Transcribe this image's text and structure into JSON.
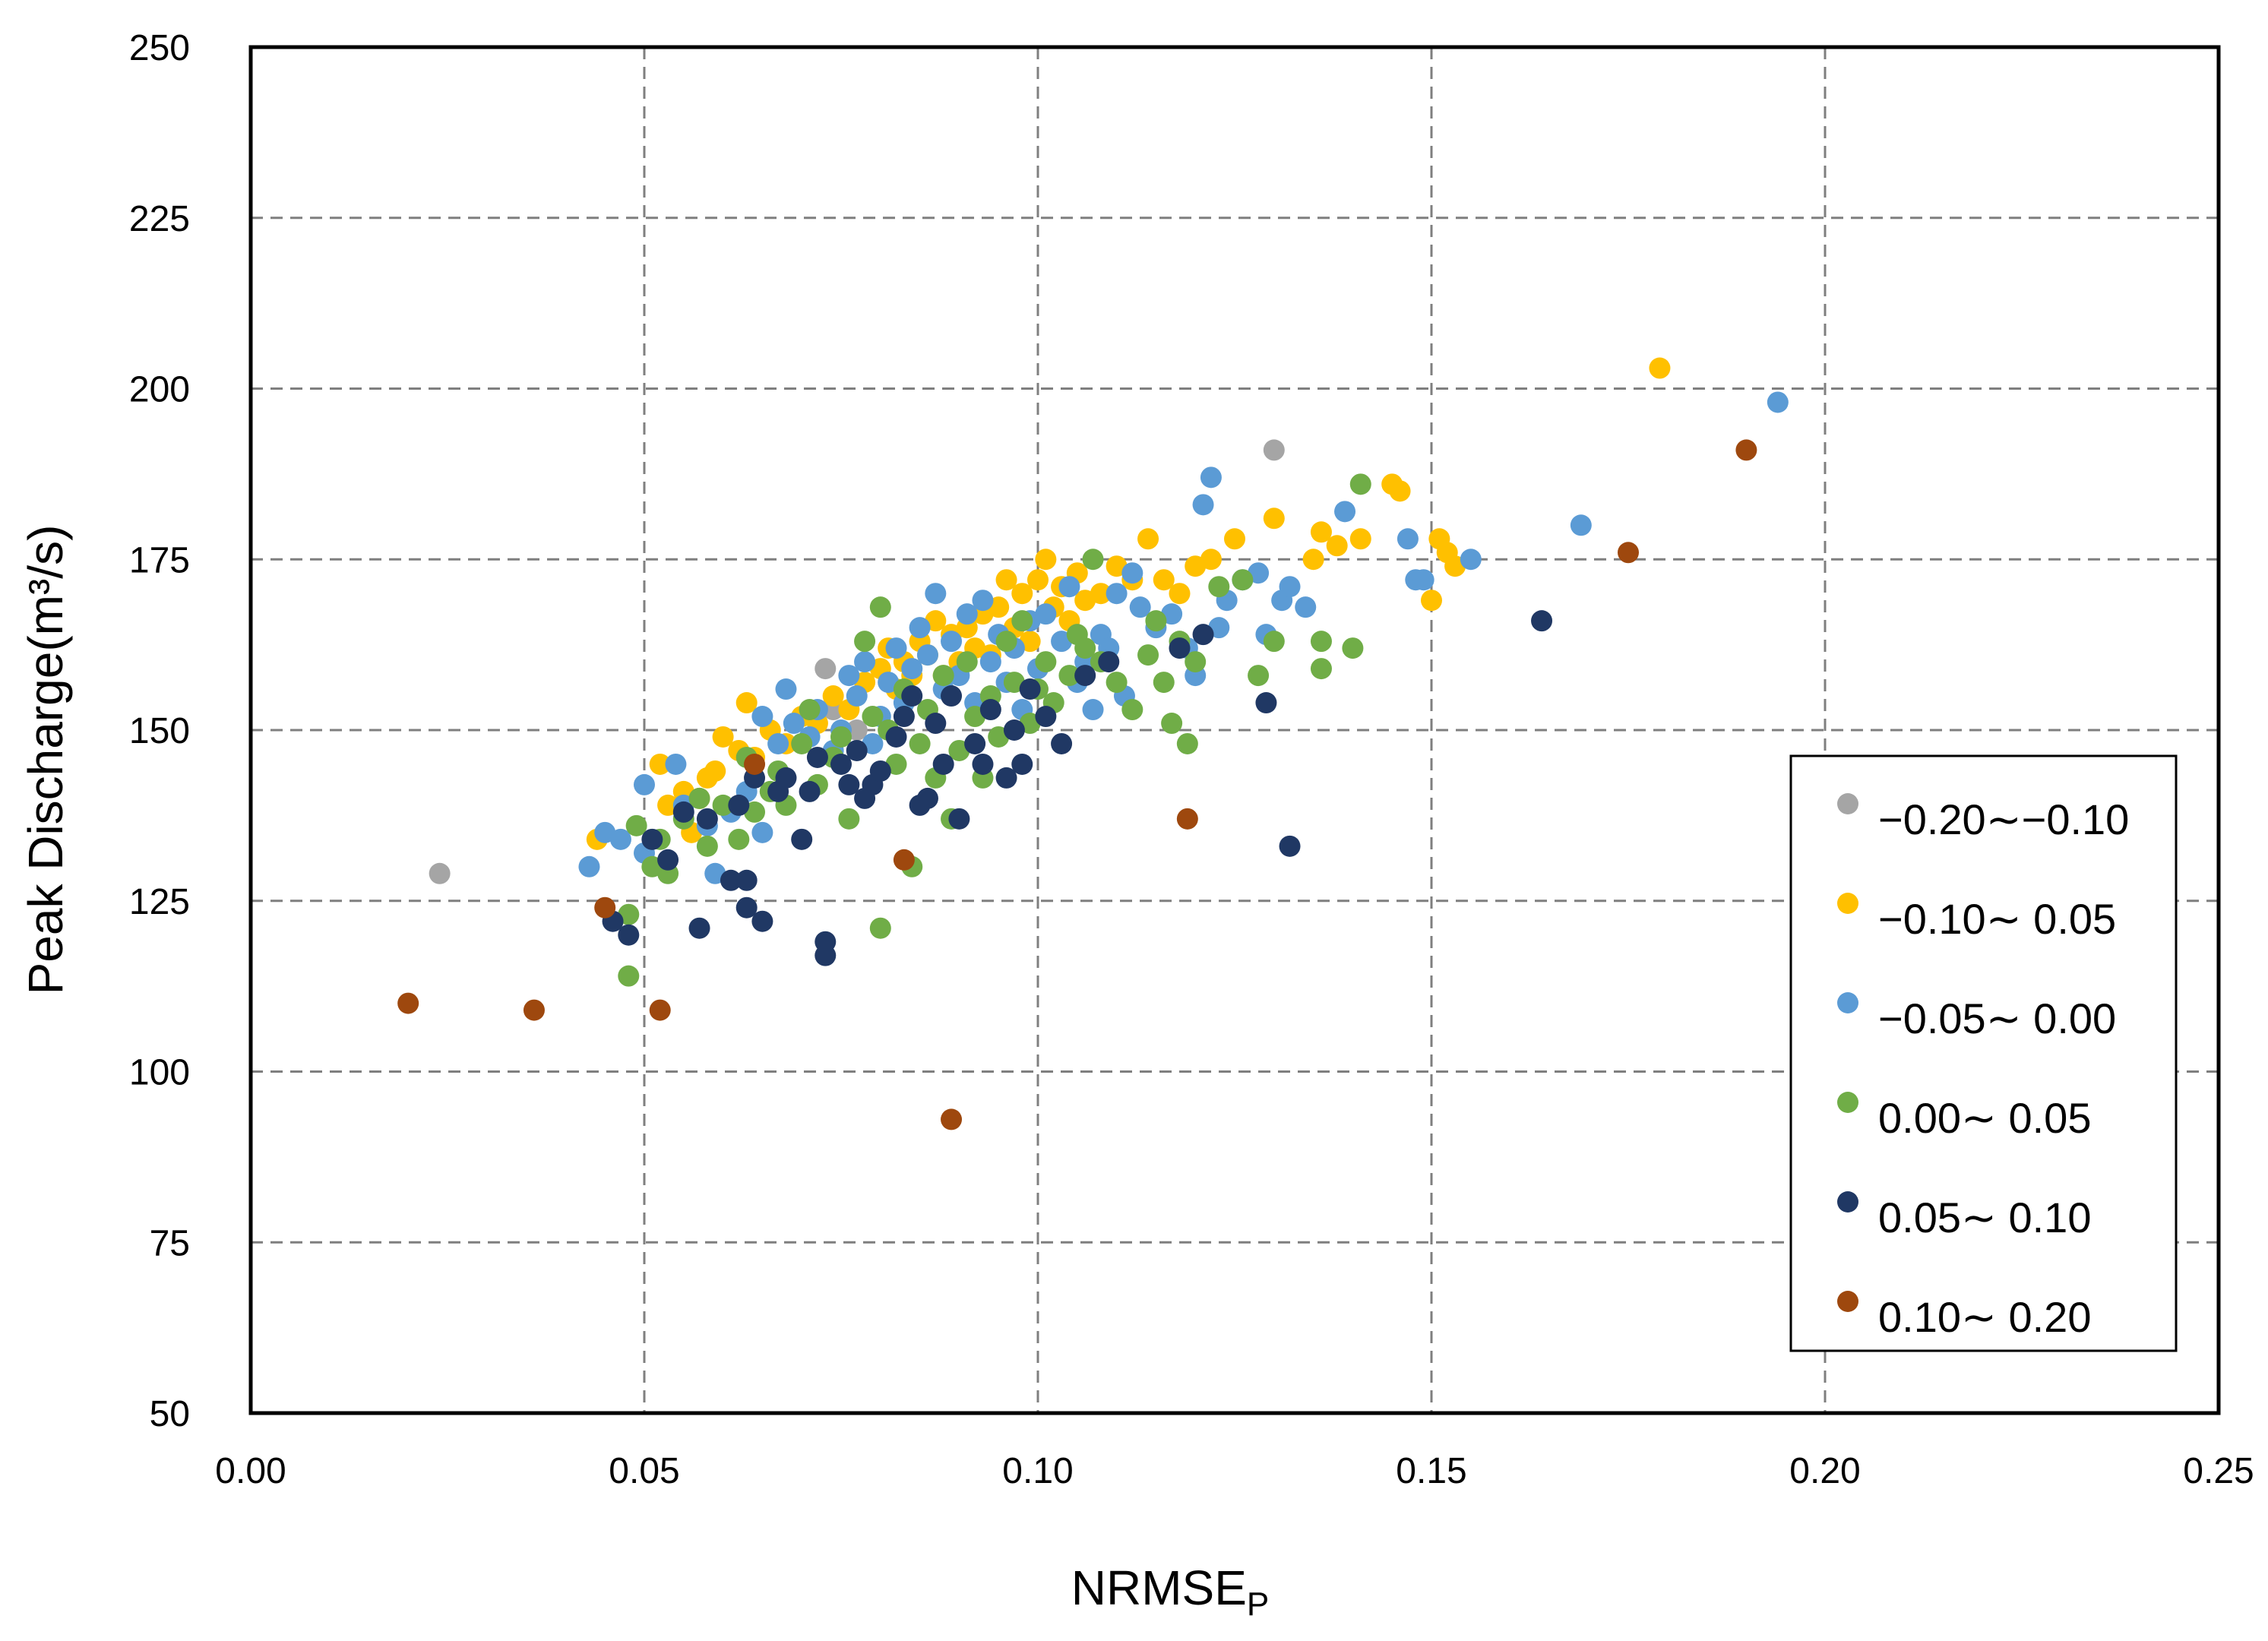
{
  "chart_data": {
    "type": "scatter",
    "title": "",
    "xlabel": "NRMSE",
    "xlabel_subscript": "P",
    "ylabel": "Peak Discharge(m³/s)",
    "xlim": [
      0.0,
      0.25
    ],
    "ylim": [
      50,
      250
    ],
    "x_ticks": [
      "0.00",
      "0.05",
      "0.10",
      "0.15",
      "0.20",
      "0.25"
    ],
    "y_ticks": [
      "50",
      "75",
      "100",
      "125",
      "150",
      "175",
      "200",
      "225",
      "250"
    ],
    "grid": true,
    "legend_position": "right",
    "series": [
      {
        "name": "−0.20∼−0.10",
        "color": "#a5a5a5",
        "points": [
          [
            0.024,
            129
          ],
          [
            0.073,
            159
          ],
          [
            0.074,
            153
          ],
          [
            0.077,
            150
          ],
          [
            0.13,
            191
          ]
        ]
      },
      {
        "name": "−0.10∼ 0.05",
        "color": "#ffc000",
        "points": [
          [
            0.044,
            134
          ],
          [
            0.052,
            145
          ],
          [
            0.053,
            139
          ],
          [
            0.055,
            141
          ],
          [
            0.056,
            135
          ],
          [
            0.057,
            140
          ],
          [
            0.058,
            143
          ],
          [
            0.059,
            144
          ],
          [
            0.06,
            149
          ],
          [
            0.062,
            147
          ],
          [
            0.063,
            154
          ],
          [
            0.064,
            146
          ],
          [
            0.066,
            150
          ],
          [
            0.068,
            148
          ],
          [
            0.07,
            152
          ],
          [
            0.072,
            151
          ],
          [
            0.074,
            155
          ],
          [
            0.076,
            153
          ],
          [
            0.078,
            157
          ],
          [
            0.08,
            159
          ],
          [
            0.081,
            162
          ],
          [
            0.082,
            156
          ],
          [
            0.083,
            160
          ],
          [
            0.084,
            158
          ],
          [
            0.085,
            163
          ],
          [
            0.086,
            161
          ],
          [
            0.087,
            166
          ],
          [
            0.088,
            158
          ],
          [
            0.089,
            164
          ],
          [
            0.09,
            160
          ],
          [
            0.091,
            165
          ],
          [
            0.092,
            162
          ],
          [
            0.093,
            167
          ],
          [
            0.094,
            161
          ],
          [
            0.095,
            168
          ],
          [
            0.096,
            172
          ],
          [
            0.097,
            165
          ],
          [
            0.098,
            170
          ],
          [
            0.099,
            163
          ],
          [
            0.1,
            172
          ],
          [
            0.101,
            175
          ],
          [
            0.102,
            168
          ],
          [
            0.103,
            171
          ],
          [
            0.104,
            166
          ],
          [
            0.105,
            173
          ],
          [
            0.106,
            169
          ],
          [
            0.108,
            170
          ],
          [
            0.11,
            174
          ],
          [
            0.112,
            172
          ],
          [
            0.114,
            178
          ],
          [
            0.116,
            172
          ],
          [
            0.118,
            170
          ],
          [
            0.12,
            174
          ],
          [
            0.122,
            175
          ],
          [
            0.125,
            178
          ],
          [
            0.13,
            181
          ],
          [
            0.135,
            175
          ],
          [
            0.136,
            179
          ],
          [
            0.138,
            177
          ],
          [
            0.141,
            178
          ],
          [
            0.145,
            186
          ],
          [
            0.146,
            185
          ],
          [
            0.15,
            169
          ],
          [
            0.151,
            178
          ],
          [
            0.152,
            176
          ],
          [
            0.153,
            174
          ],
          [
            0.179,
            203
          ]
        ]
      },
      {
        "name": "−0.05∼ 0.00",
        "color": "#5b9bd5",
        "points": [
          [
            0.043,
            130
          ],
          [
            0.045,
            135
          ],
          [
            0.047,
            134
          ],
          [
            0.05,
            142
          ],
          [
            0.05,
            132
          ],
          [
            0.054,
            145
          ],
          [
            0.055,
            139
          ],
          [
            0.058,
            136
          ],
          [
            0.059,
            129
          ],
          [
            0.061,
            138
          ],
          [
            0.063,
            141
          ],
          [
            0.065,
            135
          ],
          [
            0.065,
            152
          ],
          [
            0.067,
            148
          ],
          [
            0.068,
            156
          ],
          [
            0.069,
            151
          ],
          [
            0.071,
            149
          ],
          [
            0.072,
            153
          ],
          [
            0.074,
            147
          ],
          [
            0.075,
            150
          ],
          [
            0.076,
            158
          ],
          [
            0.077,
            155
          ],
          [
            0.078,
            160
          ],
          [
            0.079,
            148
          ],
          [
            0.08,
            152
          ],
          [
            0.081,
            157
          ],
          [
            0.082,
            162
          ],
          [
            0.083,
            154
          ],
          [
            0.084,
            159
          ],
          [
            0.085,
            165
          ],
          [
            0.086,
            161
          ],
          [
            0.087,
            170
          ],
          [
            0.088,
            156
          ],
          [
            0.089,
            163
          ],
          [
            0.09,
            158
          ],
          [
            0.091,
            167
          ],
          [
            0.092,
            154
          ],
          [
            0.093,
            169
          ],
          [
            0.094,
            160
          ],
          [
            0.095,
            164
          ],
          [
            0.096,
            157
          ],
          [
            0.097,
            162
          ],
          [
            0.098,
            153
          ],
          [
            0.099,
            166
          ],
          [
            0.1,
            159
          ],
          [
            0.101,
            167
          ],
          [
            0.103,
            163
          ],
          [
            0.104,
            171
          ],
          [
            0.105,
            157
          ],
          [
            0.106,
            160
          ],
          [
            0.107,
            153
          ],
          [
            0.108,
            164
          ],
          [
            0.109,
            162
          ],
          [
            0.11,
            170
          ],
          [
            0.111,
            155
          ],
          [
            0.112,
            173
          ],
          [
            0.113,
            168
          ],
          [
            0.115,
            165
          ],
          [
            0.117,
            167
          ],
          [
            0.119,
            162
          ],
          [
            0.12,
            158
          ],
          [
            0.121,
            183
          ],
          [
            0.122,
            187
          ],
          [
            0.123,
            165
          ],
          [
            0.124,
            169
          ],
          [
            0.126,
            172
          ],
          [
            0.128,
            173
          ],
          [
            0.129,
            164
          ],
          [
            0.131,
            169
          ],
          [
            0.132,
            171
          ],
          [
            0.134,
            168
          ],
          [
            0.139,
            182
          ],
          [
            0.147,
            178
          ],
          [
            0.148,
            172
          ],
          [
            0.149,
            172
          ],
          [
            0.155,
            175
          ],
          [
            0.169,
            180
          ],
          [
            0.194,
            198
          ]
        ]
      },
      {
        "name": "0.00∼ 0.05",
        "color": "#70ad47",
        "points": [
          [
            0.048,
            114
          ],
          [
            0.048,
            123
          ],
          [
            0.049,
            136
          ],
          [
            0.051,
            130
          ],
          [
            0.052,
            134
          ],
          [
            0.053,
            129
          ],
          [
            0.055,
            137
          ],
          [
            0.057,
            140
          ],
          [
            0.058,
            133
          ],
          [
            0.06,
            139
          ],
          [
            0.062,
            134
          ],
          [
            0.063,
            146
          ],
          [
            0.064,
            138
          ],
          [
            0.066,
            141
          ],
          [
            0.067,
            144
          ],
          [
            0.068,
            139
          ],
          [
            0.07,
            148
          ],
          [
            0.071,
            153
          ],
          [
            0.072,
            142
          ],
          [
            0.074,
            146
          ],
          [
            0.075,
            149
          ],
          [
            0.076,
            137
          ],
          [
            0.078,
            163
          ],
          [
            0.079,
            152
          ],
          [
            0.08,
            168
          ],
          [
            0.08,
            121
          ],
          [
            0.081,
            150
          ],
          [
            0.082,
            145
          ],
          [
            0.083,
            156
          ],
          [
            0.084,
            130
          ],
          [
            0.085,
            148
          ],
          [
            0.086,
            153
          ],
          [
            0.087,
            143
          ],
          [
            0.088,
            158
          ],
          [
            0.089,
            137
          ],
          [
            0.09,
            147
          ],
          [
            0.091,
            160
          ],
          [
            0.092,
            152
          ],
          [
            0.093,
            143
          ],
          [
            0.094,
            155
          ],
          [
            0.095,
            149
          ],
          [
            0.096,
            163
          ],
          [
            0.097,
            157
          ],
          [
            0.098,
            166
          ],
          [
            0.099,
            151
          ],
          [
            0.1,
            156
          ],
          [
            0.101,
            160
          ],
          [
            0.102,
            154
          ],
          [
            0.104,
            158
          ],
          [
            0.105,
            164
          ],
          [
            0.106,
            162
          ],
          [
            0.107,
            175
          ],
          [
            0.108,
            160
          ],
          [
            0.11,
            157
          ],
          [
            0.112,
            153
          ],
          [
            0.114,
            161
          ],
          [
            0.115,
            166
          ],
          [
            0.116,
            157
          ],
          [
            0.117,
            151
          ],
          [
            0.118,
            163
          ],
          [
            0.119,
            148
          ],
          [
            0.12,
            160
          ],
          [
            0.123,
            171
          ],
          [
            0.126,
            172
          ],
          [
            0.128,
            158
          ],
          [
            0.13,
            163
          ],
          [
            0.136,
            163
          ],
          [
            0.136,
            159
          ],
          [
            0.14,
            162
          ],
          [
            0.141,
            186
          ]
        ]
      },
      {
        "name": "0.05∼ 0.10",
        "color": "#203864",
        "points": [
          [
            0.046,
            122
          ],
          [
            0.048,
            120
          ],
          [
            0.051,
            134
          ],
          [
            0.053,
            131
          ],
          [
            0.055,
            138
          ],
          [
            0.057,
            121
          ],
          [
            0.058,
            137
          ],
          [
            0.061,
            128
          ],
          [
            0.062,
            139
          ],
          [
            0.063,
            128
          ],
          [
            0.063,
            124
          ],
          [
            0.064,
            143
          ],
          [
            0.065,
            122
          ],
          [
            0.067,
            141
          ],
          [
            0.068,
            143
          ],
          [
            0.07,
            134
          ],
          [
            0.071,
            141
          ],
          [
            0.072,
            146
          ],
          [
            0.073,
            119
          ],
          [
            0.073,
            117
          ],
          [
            0.075,
            145
          ],
          [
            0.076,
            142
          ],
          [
            0.077,
            147
          ],
          [
            0.078,
            140
          ],
          [
            0.079,
            142
          ],
          [
            0.08,
            144
          ],
          [
            0.082,
            149
          ],
          [
            0.083,
            152
          ],
          [
            0.084,
            155
          ],
          [
            0.085,
            139
          ],
          [
            0.086,
            140
          ],
          [
            0.087,
            151
          ],
          [
            0.088,
            145
          ],
          [
            0.089,
            155
          ],
          [
            0.09,
            137
          ],
          [
            0.092,
            148
          ],
          [
            0.093,
            145
          ],
          [
            0.094,
            153
          ],
          [
            0.096,
            143
          ],
          [
            0.097,
            150
          ],
          [
            0.098,
            145
          ],
          [
            0.099,
            156
          ],
          [
            0.101,
            152
          ],
          [
            0.103,
            148
          ],
          [
            0.106,
            158
          ],
          [
            0.109,
            160
          ],
          [
            0.118,
            162
          ],
          [
            0.121,
            164
          ],
          [
            0.129,
            154
          ],
          [
            0.132,
            133
          ],
          [
            0.164,
            166
          ]
        ]
      },
      {
        "name": "0.10∼ 0.20",
        "color": "#9e480e",
        "points": [
          [
            0.02,
            110
          ],
          [
            0.036,
            109
          ],
          [
            0.045,
            124
          ],
          [
            0.052,
            109
          ],
          [
            0.064,
            145
          ],
          [
            0.083,
            131
          ],
          [
            0.089,
            93
          ],
          [
            0.119,
            137
          ],
          [
            0.175,
            176
          ],
          [
            0.19,
            191
          ]
        ]
      }
    ]
  }
}
